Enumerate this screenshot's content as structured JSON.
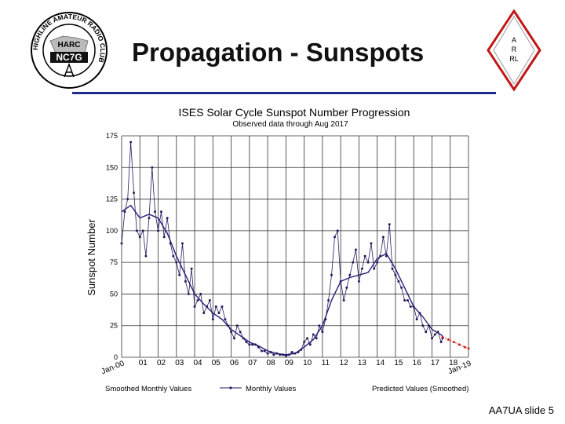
{
  "slide": {
    "title": "Propagation - Sunspots",
    "footer": "AA7UA slide 5",
    "logo_text": {
      "ring": "HIGHLINE AMATEUR RADIO CLUB",
      "top": "HARC",
      "call": "NC7G"
    },
    "arrl_lines": [
      "A",
      "R",
      "RL"
    ]
  },
  "colors": {
    "rule": "#1f2b8f",
    "monthly": "#2a1a5e",
    "smoothed": "#1f1f7a",
    "predicted": "#d42020",
    "grid": "#333333"
  },
  "chart_data": {
    "type": "line",
    "title": "ISES Solar Cycle Sunspot Number Progression",
    "subtitle": "Observed data through Aug 2017",
    "ylabel": "Sunspot Number",
    "xlabel": "",
    "ylim": [
      0,
      175
    ],
    "yticks": [
      0,
      25,
      50,
      75,
      100,
      125,
      150,
      175
    ],
    "ytick_labels": [
      "0",
      "25",
      "50",
      "75",
      "100",
      "125",
      "150",
      "175"
    ],
    "xlim": [
      2000,
      2019
    ],
    "xticks": [
      2000,
      2001,
      2002,
      2003,
      2004,
      2005,
      2006,
      2007,
      2008,
      2009,
      2010,
      2011,
      2012,
      2013,
      2014,
      2015,
      2016,
      2017,
      2018,
      2019
    ],
    "xtick_labels": [
      "Jan-00",
      "01",
      "02",
      "03",
      "04",
      "05",
      "06",
      "07",
      "08",
      "09",
      "10",
      "11",
      "12",
      "13",
      "14",
      "15",
      "16",
      "17",
      "18",
      "Jan-19"
    ],
    "grid": true,
    "legend_position": "bottom",
    "legend": [
      "Smoothed Monthly Values",
      "Monthly Values",
      "Predicted Values (Smoothed)"
    ],
    "series": [
      {
        "name": "Monthly Values",
        "x": [
          2000.0,
          2000.17,
          2000.33,
          2000.5,
          2000.67,
          2000.83,
          2001.0,
          2001.17,
          2001.33,
          2001.5,
          2001.67,
          2001.83,
          2002.0,
          2002.17,
          2002.33,
          2002.5,
          2002.67,
          2002.83,
          2003.0,
          2003.17,
          2003.33,
          2003.5,
          2003.67,
          2003.83,
          2004.0,
          2004.17,
          2004.33,
          2004.5,
          2004.67,
          2004.83,
          2005.0,
          2005.17,
          2005.33,
          2005.5,
          2005.67,
          2005.83,
          2006.0,
          2006.17,
          2006.33,
          2006.5,
          2006.67,
          2006.83,
          2007.0,
          2007.17,
          2007.33,
          2007.5,
          2007.67,
          2007.83,
          2008.0,
          2008.17,
          2008.33,
          2008.5,
          2008.67,
          2008.83,
          2009.0,
          2009.17,
          2009.33,
          2009.5,
          2009.67,
          2009.83,
          2010.0,
          2010.17,
          2010.33,
          2010.5,
          2010.67,
          2010.83,
          2011.0,
          2011.17,
          2011.33,
          2011.5,
          2011.67,
          2011.83,
          2012.0,
          2012.17,
          2012.33,
          2012.5,
          2012.67,
          2012.83,
          2013.0,
          2013.17,
          2013.33,
          2013.5,
          2013.67,
          2013.83,
          2014.0,
          2014.17,
          2014.33,
          2014.5,
          2014.67,
          2014.83,
          2015.0,
          2015.17,
          2015.33,
          2015.5,
          2015.67,
          2015.83,
          2016.0,
          2016.17,
          2016.33,
          2016.5,
          2016.67,
          2016.83,
          2017.0,
          2017.17,
          2017.33,
          2017.5,
          2017.58
        ],
        "y": [
          90,
          115,
          125,
          170,
          130,
          100,
          95,
          100,
          80,
          110,
          150,
          115,
          100,
          115,
          95,
          110,
          90,
          80,
          75,
          65,
          90,
          60,
          50,
          70,
          40,
          45,
          50,
          35,
          40,
          45,
          30,
          40,
          35,
          40,
          30,
          25,
          20,
          15,
          25,
          20,
          15,
          12,
          10,
          10,
          10,
          8,
          5,
          5,
          3,
          4,
          2,
          3,
          2,
          2,
          1,
          2,
          4,
          3,
          4,
          6,
          12,
          15,
          10,
          18,
          15,
          25,
          20,
          30,
          45,
          65,
          95,
          100,
          60,
          45,
          55,
          65,
          75,
          85,
          60,
          70,
          80,
          75,
          90,
          70,
          75,
          80,
          95,
          80,
          105,
          70,
          65,
          60,
          55,
          45,
          45,
          40,
          40,
          30,
          35,
          25,
          20,
          25,
          15,
          18,
          20,
          12,
          15
        ]
      },
      {
        "name": "Smoothed Monthly Values",
        "x": [
          2000.0,
          2000.5,
          2001.0,
          2001.5,
          2002.0,
          2002.5,
          2003.0,
          2003.5,
          2004.0,
          2004.5,
          2005.0,
          2005.5,
          2006.0,
          2006.5,
          2007.0,
          2007.5,
          2008.0,
          2008.5,
          2009.0,
          2009.5,
          2010.0,
          2010.5,
          2011.0,
          2011.5,
          2012.0,
          2012.5,
          2013.0,
          2013.5,
          2014.0,
          2014.5,
          2015.0,
          2015.5,
          2016.0,
          2016.5,
          2017.0,
          2017.58
        ],
        "y": [
          115,
          120,
          110,
          113,
          110,
          98,
          80,
          65,
          50,
          42,
          35,
          30,
          22,
          17,
          12,
          9,
          5,
          3,
          2,
          3,
          8,
          14,
          25,
          45,
          60,
          63,
          65,
          67,
          78,
          82,
          70,
          55,
          40,
          32,
          22,
          17
        ]
      },
      {
        "name": "Predicted Values (Smoothed)",
        "x": [
          2017.58,
          2017.9,
          2018.2,
          2018.5,
          2018.8,
          2019.0
        ],
        "y": [
          16,
          14,
          12,
          10,
          8,
          7
        ]
      }
    ]
  }
}
